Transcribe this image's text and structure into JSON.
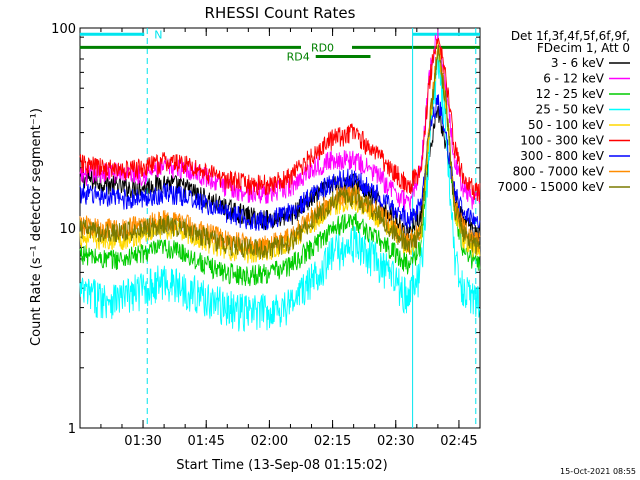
{
  "chart_data": {
    "type": "line",
    "title": "RHESSI Count Rates",
    "xlabel": "Start Time (13-Sep-08 01:15:02)",
    "ylabel": "Count Rate (s⁻¹ detector segment⁻¹)",
    "x_ticks": [
      "01:30",
      "01:45",
      "02:00",
      "02:15",
      "02:30",
      "02:45"
    ],
    "y_ticks": [
      "1",
      "10",
      "100"
    ],
    "y_scale": "log",
    "ylim": [
      1,
      100
    ],
    "xlim": [
      "01:15:02",
      "02:50"
    ],
    "grid": false,
    "legend_position": "right",
    "legend_header": [
      "Det 1f,3f,4f,5f,6f,9f,",
      "FDecim 1, Att 0"
    ],
    "timestamp": "15-Oct-2021 08:55",
    "x": [
      "01:15",
      "01:20",
      "01:25",
      "01:30",
      "01:35",
      "01:40",
      "01:45",
      "01:50",
      "01:55",
      "02:00",
      "02:05",
      "02:10",
      "02:15",
      "02:20",
      "02:25",
      "02:30",
      "02:33",
      "02:36",
      "02:38",
      "02:40",
      "02:42",
      "02:44",
      "02:46",
      "02:48",
      "02:50"
    ],
    "series": [
      {
        "name": "3 - 6 keV",
        "color": "#000000",
        "values": [
          18,
          17,
          16,
          16,
          17,
          16,
          14,
          12.5,
          11.5,
          11,
          11.5,
          14,
          16.5,
          17,
          14,
          11,
          9.5,
          12,
          22,
          40,
          25,
          14,
          11,
          10,
          9.5
        ]
      },
      {
        "name": "6 - 12 keV",
        "color": "#ff00ff",
        "values": [
          18,
          19,
          19,
          18.5,
          20,
          20,
          18,
          16,
          15,
          15,
          16,
          20,
          22,
          22,
          19,
          15,
          13,
          20,
          60,
          95,
          50,
          22,
          16,
          14,
          14
        ]
      },
      {
        "name": "12 - 25 keV",
        "color": "#00cc00",
        "values": [
          7.5,
          7,
          7,
          7.5,
          8,
          7.5,
          6.5,
          6,
          5.8,
          6,
          6.5,
          8,
          10,
          11,
          9,
          7.5,
          6.5,
          8,
          30,
          75,
          40,
          12,
          8,
          7,
          6.5
        ]
      },
      {
        "name": "25 - 50 keV",
        "color": "#00ffff",
        "values": [
          4.8,
          4.5,
          4.5,
          5,
          5.5,
          5,
          4.5,
          4,
          3.8,
          3.9,
          4.2,
          5.5,
          7.5,
          8.5,
          7,
          5.5,
          4.5,
          6,
          25,
          72,
          30,
          7,
          5,
          4.5,
          4.5
        ]
      },
      {
        "name": "50 - 100 keV",
        "color": "#ffd700",
        "values": [
          9,
          8.8,
          8.8,
          9.2,
          10,
          9.5,
          8.5,
          7.8,
          7.5,
          7.8,
          8.5,
          10.5,
          13,
          14,
          11.5,
          9.5,
          8,
          9.5,
          32,
          80,
          40,
          12,
          9,
          8,
          8
        ]
      },
      {
        "name": "100 - 300 keV",
        "color": "#ff0000",
        "values": [
          21,
          20,
          19.5,
          20,
          21.5,
          21,
          19,
          17.5,
          16.5,
          16.5,
          18,
          23,
          28,
          30,
          24,
          19,
          16,
          20,
          55,
          98,
          55,
          25,
          18,
          16,
          15
        ]
      },
      {
        "name": "300 - 800 keV",
        "color": "#0000ff",
        "values": [
          15,
          14.5,
          14,
          14,
          15,
          14.5,
          13,
          12,
          11,
          11,
          12,
          14.5,
          17,
          18,
          15,
          12.5,
          11,
          13,
          30,
          45,
          28,
          15,
          12,
          11,
          10
        ]
      },
      {
        "name": "800 - 7000 keV",
        "color": "#ff8c00",
        "values": [
          10.5,
          10,
          10,
          10.5,
          11,
          10.5,
          9.5,
          8.8,
          8.3,
          8.3,
          9,
          11.5,
          14,
          15,
          12.5,
          10,
          8.5,
          10,
          34,
          82,
          42,
          13,
          10,
          9,
          8.5
        ]
      },
      {
        "name": "7000 - 15000 keV",
        "color": "#7a7a00",
        "values": [
          10,
          9.5,
          9.5,
          10,
          10.5,
          10,
          9,
          8.3,
          7.9,
          7.9,
          8.5,
          11,
          13.5,
          14.5,
          12,
          9.5,
          8.2,
          9.5,
          33,
          80,
          41,
          12.5,
          9.5,
          8.5,
          8
        ]
      }
    ],
    "annotations": [
      {
        "label": "N",
        "color": "#00e5ee",
        "level": 93,
        "start": "01:15",
        "end": "01:31",
        "marker_times": [
          "01:31"
        ]
      },
      {
        "label": "RD0",
        "color": "#008000",
        "level": 80,
        "start": "01:15",
        "end": "02:50"
      },
      {
        "label": "RD4",
        "color": "#008000",
        "level": 72,
        "start": "02:11",
        "end": "02:24"
      },
      {
        "label": "",
        "color": "#00e5ee",
        "level": 93,
        "start": "02:34",
        "end": "02:50",
        "marker_times": [
          "02:34",
          "02:49"
        ]
      }
    ]
  }
}
